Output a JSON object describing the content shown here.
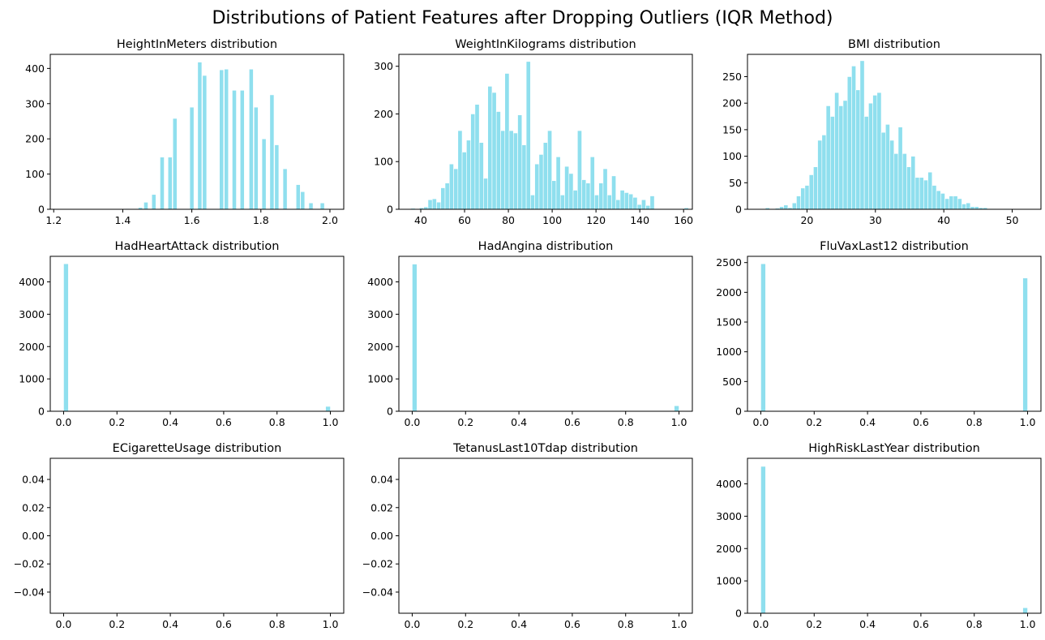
{
  "figure": {
    "title": "Distributions of Patient Features after Dropping Outliers (IQR Method)",
    "bar_color": "#8fdfee"
  },
  "chart_data": [
    {
      "type": "bar",
      "title": "HeightInMeters distribution",
      "xlim": [
        1.19,
        2.04
      ],
      "ylim": [
        0,
        440
      ],
      "xticks": [
        1.2,
        1.4,
        1.6,
        1.8,
        2.0
      ],
      "xtick_labels": [
        "1.2",
        "1.4",
        "1.6",
        "1.8",
        "2.0"
      ],
      "yticks": [
        0,
        100,
        200,
        300,
        400
      ],
      "ytick_labels": [
        "0",
        "100",
        "200",
        "300",
        "400"
      ],
      "bars": [
        {
          "x0": 1.408,
          "x1": 1.42,
          "value": 2
        },
        {
          "x0": 1.445,
          "x1": 1.457,
          "value": 5
        },
        {
          "x0": 1.461,
          "x1": 1.473,
          "value": 20
        },
        {
          "x0": 1.484,
          "x1": 1.496,
          "value": 42
        },
        {
          "x0": 1.508,
          "x1": 1.52,
          "value": 148
        },
        {
          "x0": 1.531,
          "x1": 1.543,
          "value": 148
        },
        {
          "x0": 1.545,
          "x1": 1.557,
          "value": 258
        },
        {
          "x0": 1.594,
          "x1": 1.606,
          "value": 290
        },
        {
          "x0": 1.617,
          "x1": 1.629,
          "value": 418
        },
        {
          "x0": 1.631,
          "x1": 1.643,
          "value": 380
        },
        {
          "x0": 1.68,
          "x1": 1.692,
          "value": 396
        },
        {
          "x0": 1.694,
          "x1": 1.706,
          "value": 398
        },
        {
          "x0": 1.717,
          "x1": 1.729,
          "value": 338
        },
        {
          "x0": 1.74,
          "x1": 1.752,
          "value": 338
        },
        {
          "x0": 1.766,
          "x1": 1.778,
          "value": 398
        },
        {
          "x0": 1.78,
          "x1": 1.792,
          "value": 290
        },
        {
          "x0": 1.803,
          "x1": 1.815,
          "value": 200
        },
        {
          "x0": 1.826,
          "x1": 1.838,
          "value": 325
        },
        {
          "x0": 1.84,
          "x1": 1.852,
          "value": 183
        },
        {
          "x0": 1.864,
          "x1": 1.876,
          "value": 115
        },
        {
          "x0": 1.902,
          "x1": 1.914,
          "value": 70
        },
        {
          "x0": 1.915,
          "x1": 1.927,
          "value": 50
        },
        {
          "x0": 1.939,
          "x1": 1.951,
          "value": 18
        },
        {
          "x0": 1.972,
          "x1": 1.984,
          "value": 18
        }
      ]
    },
    {
      "type": "bar",
      "title": "WeightInKilograms distribution",
      "xlim": [
        30,
        164
      ],
      "ylim": [
        0,
        325
      ],
      "xticks": [
        40,
        60,
        80,
        100,
        120,
        140,
        160
      ],
      "xtick_labels": [
        "40",
        "60",
        "80",
        "100",
        "120",
        "140",
        "160"
      ],
      "yticks": [
        0,
        100,
        200,
        300
      ],
      "ytick_labels": [
        "0",
        "100",
        "200",
        "300"
      ],
      "bin_start": 35.5,
      "bin_width": 1.95,
      "values": [
        2,
        0,
        3,
        5,
        20,
        22,
        15,
        45,
        55,
        95,
        85,
        165,
        120,
        145,
        200,
        220,
        140,
        65,
        258,
        245,
        205,
        165,
        285,
        165,
        160,
        198,
        135,
        310,
        30,
        95,
        115,
        140,
        165,
        60,
        110,
        30,
        90,
        75,
        40,
        165,
        62,
        55,
        110,
        30,
        55,
        85,
        30,
        70,
        20,
        40,
        35,
        32,
        25,
        10,
        20,
        8,
        28,
        0,
        0,
        0,
        0,
        0,
        0,
        0,
        3,
        0,
        0,
        0,
        0,
        0,
        0,
        0,
        0,
        0,
        0,
        0,
        0,
        0,
        0,
        0,
        0,
        0,
        0,
        3
      ]
    },
    {
      "type": "bar",
      "title": "BMI distribution",
      "xlim": [
        11.3,
        54.2
      ],
      "ylim": [
        0,
        292
      ],
      "xticks": [
        20,
        30,
        40,
        50
      ],
      "xtick_labels": [
        "20",
        "30",
        "40",
        "50"
      ],
      "yticks": [
        0,
        50,
        100,
        150,
        200,
        250
      ],
      "ytick_labels": [
        "0",
        "50",
        "100",
        "150",
        "200",
        "250"
      ],
      "bin_start": 13.5,
      "bin_width": 0.62,
      "values": [
        0,
        0,
        0,
        2,
        5,
        8,
        3,
        12,
        25,
        40,
        45,
        65,
        80,
        130,
        140,
        195,
        175,
        220,
        195,
        205,
        250,
        270,
        225,
        280,
        175,
        200,
        215,
        220,
        145,
        160,
        130,
        105,
        155,
        105,
        80,
        100,
        60,
        60,
        55,
        70,
        45,
        35,
        30,
        20,
        25,
        25,
        20,
        10,
        12,
        5,
        5,
        3,
        3,
        1,
        1,
        0,
        0,
        1,
        0,
        0,
        0,
        0,
        0
      ]
    },
    {
      "type": "bar",
      "title": "HadHeartAttack distribution",
      "xlim": [
        -0.05,
        1.05
      ],
      "ylim": [
        0,
        4790
      ],
      "xticks": [
        0.0,
        0.2,
        0.4,
        0.6,
        0.8,
        1.0
      ],
      "xtick_labels": [
        "0.0",
        "0.2",
        "0.4",
        "0.6",
        "0.8",
        "1.0"
      ],
      "yticks": [
        0,
        1000,
        2000,
        3000,
        4000
      ],
      "ytick_labels": [
        "0",
        "1000",
        "2000",
        "3000",
        "4000"
      ],
      "bars": [
        {
          "x0": 0.0,
          "x1": 0.018,
          "value": 4560
        },
        {
          "x0": 0.982,
          "x1": 1.0,
          "value": 150
        }
      ]
    },
    {
      "type": "bar",
      "title": "HadAngina distribution",
      "xlim": [
        -0.05,
        1.05
      ],
      "ylim": [
        0,
        4790
      ],
      "xticks": [
        0.0,
        0.2,
        0.4,
        0.6,
        0.8,
        1.0
      ],
      "xtick_labels": [
        "0.0",
        "0.2",
        "0.4",
        "0.6",
        "0.8",
        "1.0"
      ],
      "yticks": [
        0,
        1000,
        2000,
        3000,
        4000
      ],
      "ytick_labels": [
        "0",
        "1000",
        "2000",
        "3000",
        "4000"
      ],
      "bars": [
        {
          "x0": 0.0,
          "x1": 0.018,
          "value": 4550
        },
        {
          "x0": 0.982,
          "x1": 1.0,
          "value": 170
        }
      ]
    },
    {
      "type": "bar",
      "title": "FluVaxLast12 distribution",
      "xlim": [
        -0.05,
        1.05
      ],
      "ylim": [
        0,
        2605
      ],
      "xticks": [
        0.0,
        0.2,
        0.4,
        0.6,
        0.8,
        1.0
      ],
      "xtick_labels": [
        "0.0",
        "0.2",
        "0.4",
        "0.6",
        "0.8",
        "1.0"
      ],
      "yticks": [
        0,
        500,
        1000,
        1500,
        2000,
        2500
      ],
      "ytick_labels": [
        "0",
        "500",
        "1000",
        "1500",
        "2000",
        "2500"
      ],
      "bars": [
        {
          "x0": 0.0,
          "x1": 0.018,
          "value": 2480
        },
        {
          "x0": 0.982,
          "x1": 1.0,
          "value": 2240
        }
      ]
    },
    {
      "type": "bar",
      "title": "ECigaretteUsage distribution",
      "xlim": [
        -0.05,
        1.05
      ],
      "ylim": [
        -0.055,
        0.055
      ],
      "xticks": [
        0.0,
        0.2,
        0.4,
        0.6,
        0.8,
        1.0
      ],
      "xtick_labels": [
        "0.0",
        "0.2",
        "0.4",
        "0.6",
        "0.8",
        "1.0"
      ],
      "yticks": [
        0.04,
        0.02,
        0.0,
        -0.02,
        -0.04
      ],
      "ytick_labels": [
        "0.04",
        "0.02",
        "0.00",
        "−0.02",
        "−0.04"
      ],
      "bars": []
    },
    {
      "type": "bar",
      "title": "TetanusLast10Tdap distribution",
      "xlim": [
        -0.05,
        1.05
      ],
      "ylim": [
        -0.055,
        0.055
      ],
      "xticks": [
        0.0,
        0.2,
        0.4,
        0.6,
        0.8,
        1.0
      ],
      "xtick_labels": [
        "0.0",
        "0.2",
        "0.4",
        "0.6",
        "0.8",
        "1.0"
      ],
      "yticks": [
        0.04,
        0.02,
        0.0,
        -0.02,
        -0.04
      ],
      "ytick_labels": [
        "0.04",
        "0.02",
        "0.00",
        "−0.02",
        "−0.04"
      ],
      "bars": []
    },
    {
      "type": "bar",
      "title": "HighRiskLastYear distribution",
      "xlim": [
        -0.05,
        1.05
      ],
      "ylim": [
        0,
        4790
      ],
      "xticks": [
        0.0,
        0.2,
        0.4,
        0.6,
        0.8,
        1.0
      ],
      "xtick_labels": [
        "0.0",
        "0.2",
        "0.4",
        "0.6",
        "0.8",
        "1.0"
      ],
      "yticks": [
        0,
        1000,
        2000,
        3000,
        4000
      ],
      "ytick_labels": [
        "0",
        "1000",
        "2000",
        "3000",
        "4000"
      ],
      "bars": [
        {
          "x0": 0.0,
          "x1": 0.018,
          "value": 4540
        },
        {
          "x0": 0.982,
          "x1": 1.0,
          "value": 170
        }
      ]
    }
  ]
}
